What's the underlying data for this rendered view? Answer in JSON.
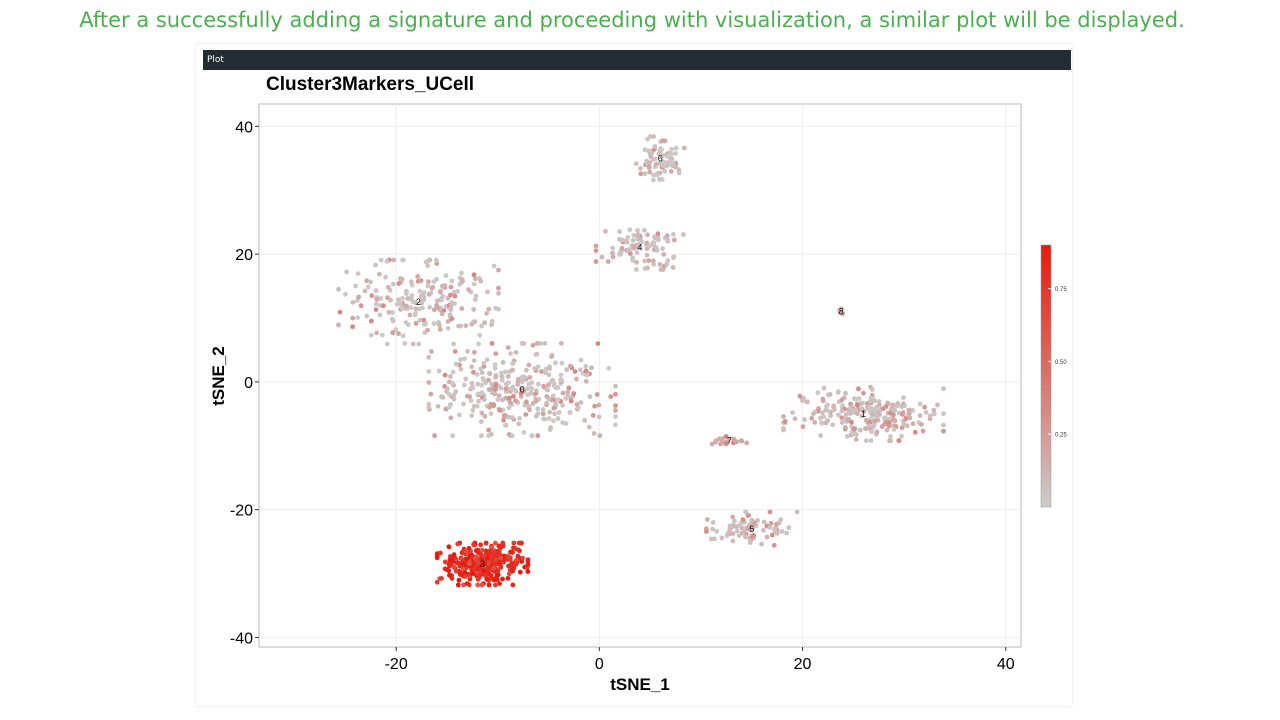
{
  "caption": "After a successfully adding a signature and proceeding with visualization, a similar plot will be displayed.",
  "panel": {
    "header_label": "Plot"
  },
  "chart_data": {
    "type": "scatter",
    "title": "Cluster3Markers_UCell",
    "xlabel": "tSNE_1",
    "ylabel": "tSNE_2",
    "xlim": [
      -33.5,
      41.5
    ],
    "ylim": [
      -41.5,
      43.5
    ],
    "xticks": [
      -20,
      0,
      20,
      40
    ],
    "xtick_labels": [
      "-20",
      "0",
      "20",
      "40"
    ],
    "yticks": [
      -40,
      -20,
      0,
      20,
      40
    ],
    "ytick_labels": [
      "-40",
      "-20",
      "0",
      "20",
      "40"
    ],
    "grid": true,
    "colorscale": {
      "low": "#cccccc",
      "high": "#e8190b",
      "min": 0.0,
      "max": 0.9,
      "ticks": [
        0.25,
        0.5,
        0.75
      ],
      "tick_labels": [
        "0.25",
        "0.50",
        "0.75"
      ],
      "legend_position": "right"
    },
    "clusters": [
      {
        "label": "0",
        "center": [
          -7.6,
          -1.2
        ],
        "spread": [
          7.0,
          5.5
        ],
        "n": 330,
        "score": [
          0.02,
          0.35
        ]
      },
      {
        "label": "2",
        "center": [
          -17.8,
          12.5
        ],
        "spread": [
          6.0,
          5.0
        ],
        "n": 210,
        "score": [
          0.02,
          0.38
        ]
      },
      {
        "label": "1",
        "center": [
          26.0,
          -5.0
        ],
        "spread": [
          6.0,
          3.2
        ],
        "n": 230,
        "score": [
          0.03,
          0.35
        ]
      },
      {
        "label": "4",
        "center": [
          4.0,
          21.0
        ],
        "spread": [
          3.3,
          2.6
        ],
        "n": 95,
        "score": [
          0.03,
          0.3
        ]
      },
      {
        "label": "6",
        "center": [
          6.0,
          35.0
        ],
        "spread": [
          1.8,
          2.6
        ],
        "n": 80,
        "score": [
          0.02,
          0.3
        ]
      },
      {
        "label": "5",
        "center": [
          15.0,
          -23.0
        ],
        "spread": [
          3.4,
          2.0
        ],
        "n": 80,
        "score": [
          0.05,
          0.35
        ]
      },
      {
        "label": "7",
        "center": [
          12.8,
          -9.2
        ],
        "spread": [
          1.3,
          0.5
        ],
        "n": 20,
        "score": [
          0.15,
          0.4
        ]
      },
      {
        "label": "8",
        "center": [
          23.8,
          11.0
        ],
        "spread": [
          0.35,
          0.5
        ],
        "n": 4,
        "score": [
          0.05,
          0.25
        ]
      },
      {
        "label": "3",
        "center": [
          -11.5,
          -28.5
        ],
        "spread": [
          3.4,
          2.5
        ],
        "n": 310,
        "score": [
          0.55,
          0.92
        ]
      }
    ]
  }
}
